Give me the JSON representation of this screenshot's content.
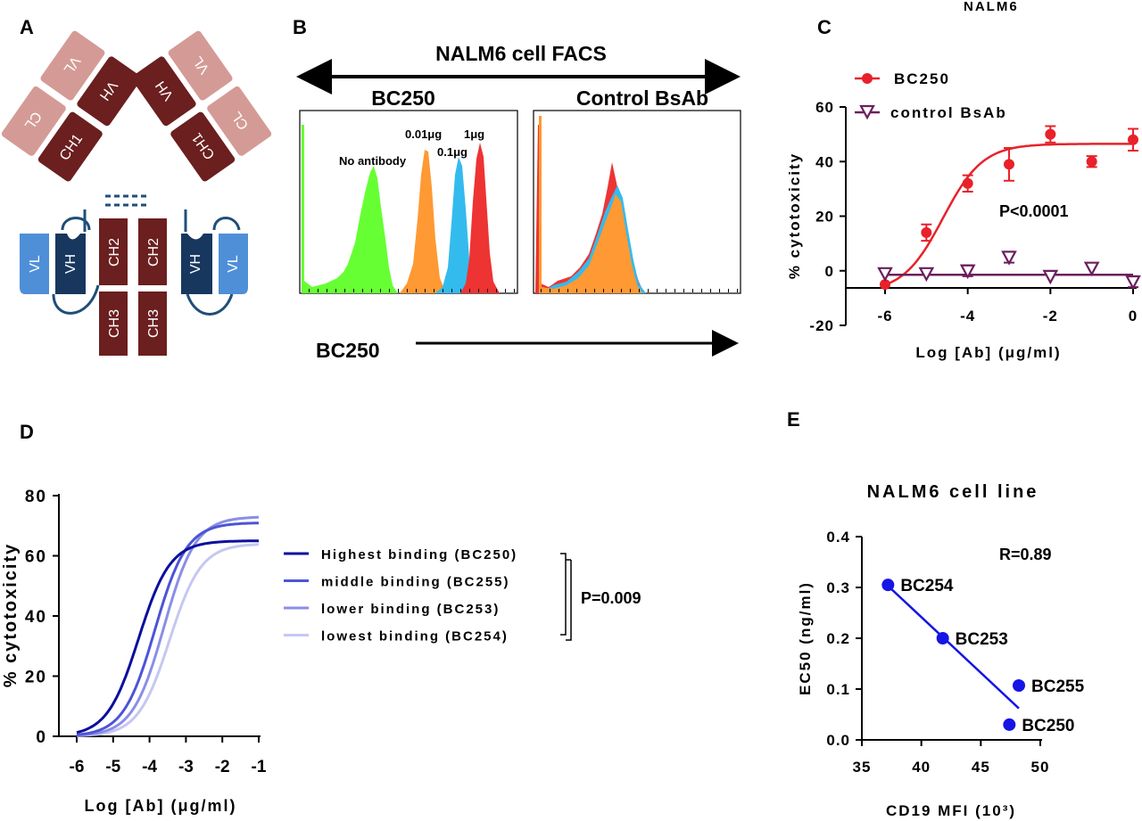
{
  "panels": {
    "A": "A",
    "B": "B",
    "C": "C",
    "D": "D",
    "E": "E"
  },
  "antibody": {
    "domains": {
      "vh": "VH",
      "vl": "VL",
      "ch1": "CH1",
      "cl": "CL",
      "ch2": "CH2",
      "ch3": "CH3"
    },
    "colors": {
      "heavy_dark": "#6b1f1f",
      "light_pink": "#d49b96",
      "scfv_dark": "#17375e",
      "scfv_light": "#4f8fd8",
      "linker": "#1f4e79"
    }
  },
  "facs": {
    "title": "NALM6 cell FACS",
    "left_title": "BC250",
    "right_title": "Control BsAb",
    "peak_labels": {
      "none": "No antibody",
      "p001": "0.01μg",
      "p01": "0.1μg",
      "p1": "1μg"
    },
    "xaxis_label": "BC250",
    "colors": {
      "none": "#66ff33",
      "p001": "#ff9933",
      "p01": "#33bbee",
      "p1": "#ee3333"
    }
  },
  "panel_c": {
    "top_text": "NALM6",
    "pvalue": "P<0.0001",
    "legend": [
      "BC250",
      "control BsAb"
    ]
  },
  "panel_d": {
    "legend": [
      "Highest binding (BC250)",
      "middle binding (BC255)",
      "lower binding (BC253)",
      "lowest binding (BC254)"
    ],
    "pvalue": "P=0.009"
  },
  "panel_e": {
    "pvalue": "R=0.89"
  },
  "chart_data": [
    {
      "type": "scatter",
      "panel": "C",
      "title": "NALM6",
      "xlabel": "Log [Ab] (μg/ml)",
      "ylabel": "% cytotoxicity",
      "xlim": [
        -6,
        0
      ],
      "ylim": [
        -20,
        60
      ],
      "xticks": [
        "-6",
        "-4",
        "-2",
        "0"
      ],
      "yticks": [
        "-20",
        "0",
        "20",
        "40",
        "60"
      ],
      "series": [
        {
          "name": "BC250",
          "color": "#e8212a",
          "marker": "circle",
          "x": [
            -6,
            -5,
            -4,
            -3,
            -2,
            -1,
            0
          ],
          "y": [
            -5,
            14,
            32,
            39,
            50,
            40,
            48
          ],
          "err": [
            0,
            3,
            3,
            6,
            3,
            2,
            4
          ],
          "fit": {
            "bottom": -8,
            "top": 46.5,
            "ec50": -4.6,
            "hill": 0.9
          }
        },
        {
          "name": "control BsAb",
          "color": "#6b1f5e",
          "marker": "triangle-down",
          "x": [
            -6,
            -5,
            -4,
            -3,
            -2,
            -1,
            0
          ],
          "y": [
            -1,
            -1,
            0,
            5,
            -2,
            1,
            -4
          ],
          "err": [
            0,
            0,
            2,
            2,
            0,
            0,
            2
          ],
          "fit": {
            "flat": -1.5
          }
        }
      ]
    },
    {
      "type": "line",
      "panel": "D",
      "xlabel": "Log [Ab] (μg/ml)",
      "ylabel": "% cytotoxicity",
      "xlim": [
        -6,
        -1
      ],
      "ylim": [
        0,
        80
      ],
      "xticks": [
        "-6",
        "-5",
        "-4",
        "-3",
        "-2",
        "-1"
      ],
      "yticks": [
        "0",
        "20",
        "40",
        "60",
        "80"
      ],
      "series": [
        {
          "name": "Highest binding (BC250)",
          "color": "#0c0f9e",
          "bottom": 0,
          "top": 65,
          "ec50": -4.3,
          "hill": 1.0
        },
        {
          "name": "middle binding (BC255)",
          "color": "#4d54d6",
          "bottom": 0,
          "top": 71,
          "ec50": -3.85,
          "hill": 1.0
        },
        {
          "name": "lower binding (BC253)",
          "color": "#8a8ee6",
          "bottom": 0,
          "top": 73,
          "ec50": -3.6,
          "hill": 1.0
        },
        {
          "name": "lowest binding (BC254)",
          "color": "#c5c7f2",
          "bottom": 0,
          "top": 64,
          "ec50": -3.45,
          "hill": 1.0
        }
      ]
    },
    {
      "type": "scatter",
      "panel": "E",
      "title": "NALM6 cell line",
      "xlabel": "CD19 MFI (10³)",
      "ylabel": "EC50 (ng/ml)",
      "xlim": [
        35,
        50
      ],
      "ylim": [
        0,
        0.4
      ],
      "xticks": [
        "35",
        "40",
        "45",
        "50"
      ],
      "yticks": [
        "0.0",
        "0.1",
        "0.2",
        "0.3",
        "0.4"
      ],
      "color": "#1515e6",
      "points": [
        {
          "label": "BC254",
          "x": 37.2,
          "y": 0.305
        },
        {
          "label": "BC253",
          "x": 41.8,
          "y": 0.2
        },
        {
          "label": "BC255",
          "x": 48.2,
          "y": 0.107
        },
        {
          "label": "BC250",
          "x": 47.4,
          "y": 0.03
        }
      ],
      "fit": {
        "x": [
          37.2,
          48.2
        ],
        "y": [
          0.303,
          0.062
        ]
      }
    }
  ]
}
